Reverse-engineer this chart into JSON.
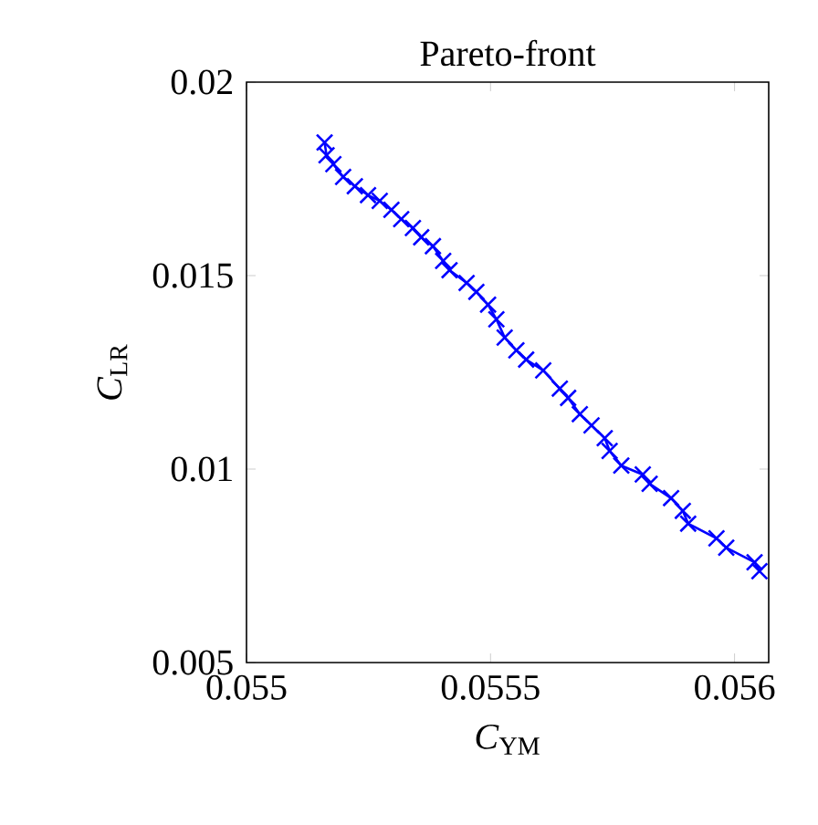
{
  "chart_data": {
    "type": "line",
    "title": "Pareto-front",
    "xlabel": "*C*$_{YM}$",
    "ylabel": "*C*$_{LR}$",
    "xlim": [
      0.055,
      0.05607
    ],
    "ylim": [
      0.005,
      0.02
    ],
    "xticks": [
      0.055,
      0.0555,
      0.056
    ],
    "yticks": [
      0.005,
      0.01,
      0.015,
      0.02
    ],
    "marker": "cross",
    "line_style": "solid",
    "series": [
      {
        "color": "#0000ff",
        "x": [
          0.05516,
          0.055164,
          0.055178,
          0.055198,
          0.055222,
          0.055249,
          0.055273,
          0.055297,
          0.055317,
          0.055341,
          0.055358,
          0.055382,
          0.055403,
          0.055416,
          0.055451,
          0.055471,
          0.055495,
          0.055512,
          0.055529,
          0.055553,
          0.055573,
          0.055608,
          0.055642,
          0.055659,
          0.055683,
          0.055707,
          0.055734,
          0.055744,
          0.055768,
          0.055812,
          0.055826,
          0.05587,
          0.055894,
          0.055905,
          0.055963,
          0.055983,
          0.056041,
          0.056051
        ],
        "values": [
          0.01844,
          0.01811,
          0.01788,
          0.01755,
          0.01731,
          0.01708,
          0.01693,
          0.0167,
          0.01646,
          0.01623,
          0.01599,
          0.01576,
          0.01538,
          0.01514,
          0.01481,
          0.01458,
          0.01425,
          0.01387,
          0.0134,
          0.01307,
          0.01283,
          0.01255,
          0.01208,
          0.01184,
          0.01142,
          0.01113,
          0.0108,
          0.01047,
          0.01009,
          0.00986,
          0.00962,
          0.00925,
          0.00892,
          0.00859,
          0.00821,
          0.00797,
          0.00759,
          0.00736
        ]
      }
    ]
  }
}
